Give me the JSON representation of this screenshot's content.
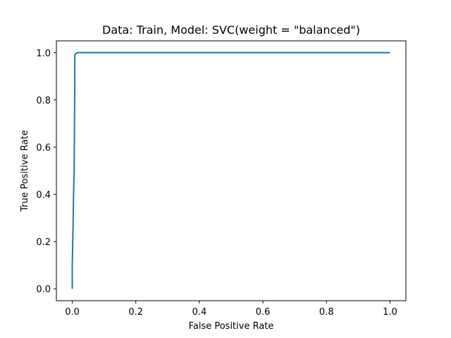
{
  "chart_data": {
    "type": "line",
    "title": "Data: Train, Model: SVC(weight = \"balanced\")",
    "xlabel": "False Positive Rate",
    "ylabel": "True Positive Rate",
    "xlim": [
      -0.05,
      1.05
    ],
    "ylim": [
      -0.05,
      1.05
    ],
    "xticks": [
      0.0,
      0.2,
      0.4,
      0.6,
      0.8,
      1.0
    ],
    "yticks": [
      0.0,
      0.2,
      0.4,
      0.6,
      0.8,
      1.0
    ],
    "xtick_labels": [
      "0.0",
      "0.2",
      "0.4",
      "0.6",
      "0.8",
      "1.0"
    ],
    "ytick_labels": [
      "0.0",
      "0.2",
      "0.4",
      "0.6",
      "0.8",
      "1.0"
    ],
    "grid": false,
    "legend": "none",
    "series": [
      {
        "color": "#1f77b4",
        "x": [
          0.0,
          0.0,
          0.0015,
          0.003,
          0.004,
          0.005,
          0.006,
          0.007,
          0.008,
          0.008,
          0.009,
          0.01,
          0.015,
          0.02,
          1.0
        ],
        "y": [
          0.0,
          0.1,
          0.2,
          0.3,
          0.4,
          0.45,
          0.5,
          0.7,
          0.9,
          0.99,
          0.993,
          0.995,
          0.999,
          1.0,
          1.0
        ]
      }
    ]
  }
}
